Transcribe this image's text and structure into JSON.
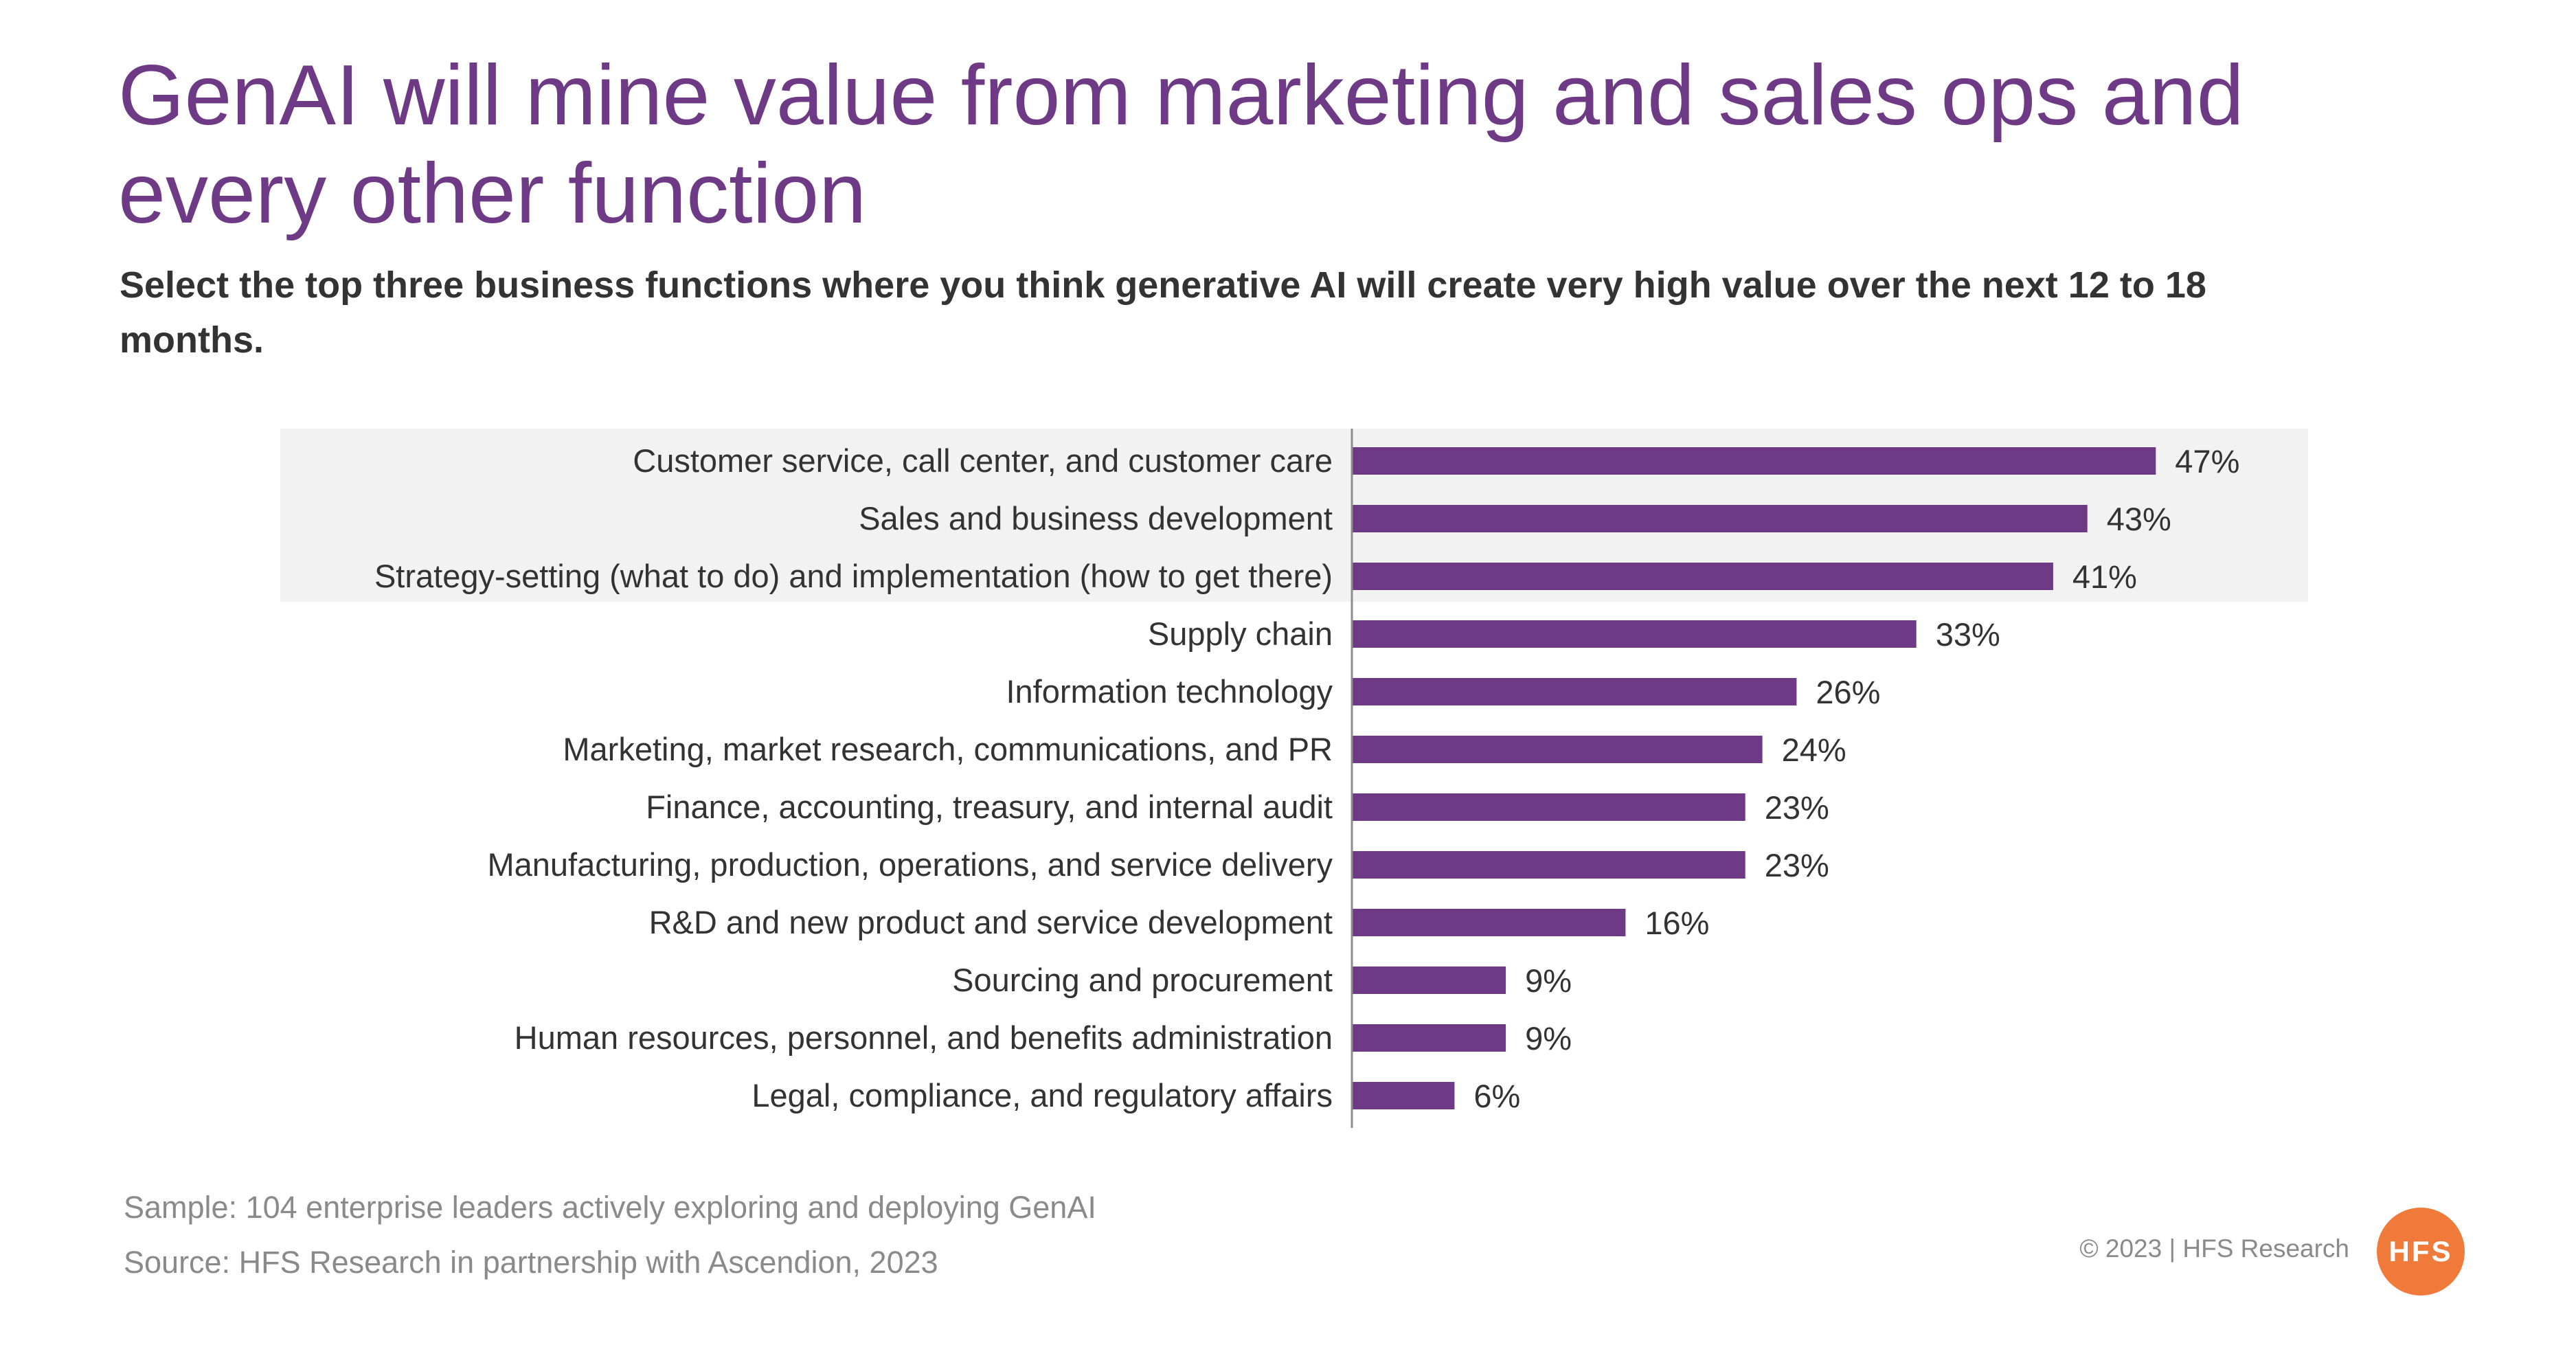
{
  "header": {
    "title": "GenAI will mine value from marketing and sales ops and every other function",
    "subtitle": "Select the top three business functions where you think generative AI will create very high value over the next 12 to 18 months."
  },
  "chart_data": {
    "type": "bar",
    "orientation": "horizontal",
    "title": "",
    "xlabel": "",
    "ylabel": "",
    "xlim": [
      0,
      50
    ],
    "grid": false,
    "legend": "none",
    "value_suffix": "%",
    "bar_color": "#6f3a85",
    "highlight_color": "#f2f2f2",
    "highlighted_categories": [
      0,
      1,
      2
    ],
    "categories": [
      "Customer service, call center, and customer care",
      "Sales and business development",
      "Strategy-setting (what to do) and implementation (how to get there)",
      "Supply chain",
      "Information technology",
      "Marketing, market research, communications, and PR",
      "Finance, accounting, treasury, and internal audit",
      "Manufacturing, production, operations, and service delivery",
      "R&D and new product and service development",
      "Sourcing and procurement",
      "Human resources, personnel, and benefits administration",
      "Legal, compliance, and regulatory affairs"
    ],
    "values": [
      47,
      43,
      41,
      33,
      26,
      24,
      23,
      23,
      16,
      9,
      9,
      6
    ],
    "value_labels": [
      "47%",
      "43%",
      "41%",
      "33%",
      "26%",
      "24%",
      "23%",
      "23%",
      "16%",
      "9%",
      "9%",
      "6%"
    ]
  },
  "footer": {
    "sample": "Sample: 104 enterprise leaders actively exploring and deploying GenAI",
    "source": "Source: HFS Research in partnership with Ascendion, 2023",
    "copyright": "© 2023 | HFS Research",
    "logo_text": "HFS"
  }
}
